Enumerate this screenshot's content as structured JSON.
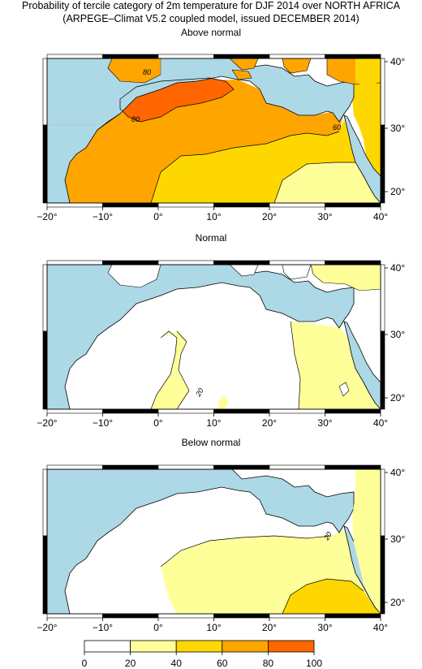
{
  "header": {
    "title_line1": "Probability of tercile category of 2m temperature for DJF 2014 over NORTH AFRICA",
    "title_line2": "(ARPEGE–Climat V5.2 coupled model, issued DECEMBER 2014)"
  },
  "panels": [
    {
      "title": "Above normal",
      "contour_labels": [
        "80",
        "80",
        "60"
      ]
    },
    {
      "title": "Normal",
      "contour_labels": [
        "20"
      ]
    },
    {
      "title": "Below normal",
      "contour_labels": [
        "20"
      ]
    }
  ],
  "axes": {
    "x_ticks": [
      "−20°",
      "−10°",
      "0°",
      "10°",
      "20°",
      "30°",
      "40°"
    ],
    "y_ticks": [
      "40°",
      "30°",
      "20°"
    ]
  },
  "colorbar": {
    "ticks": [
      "0",
      "20",
      "40",
      "60",
      "80",
      "100"
    ],
    "colors": [
      "#ffffff",
      "#ffff99",
      "#ffd700",
      "#ffa500",
      "#ff6600"
    ]
  },
  "colors": {
    "sea": "#add8e6",
    "above_60_80": "#ffa500",
    "above_80_100": "#ff6600",
    "class_20_40": "#ffff99",
    "class_40_60": "#ffd700"
  }
}
